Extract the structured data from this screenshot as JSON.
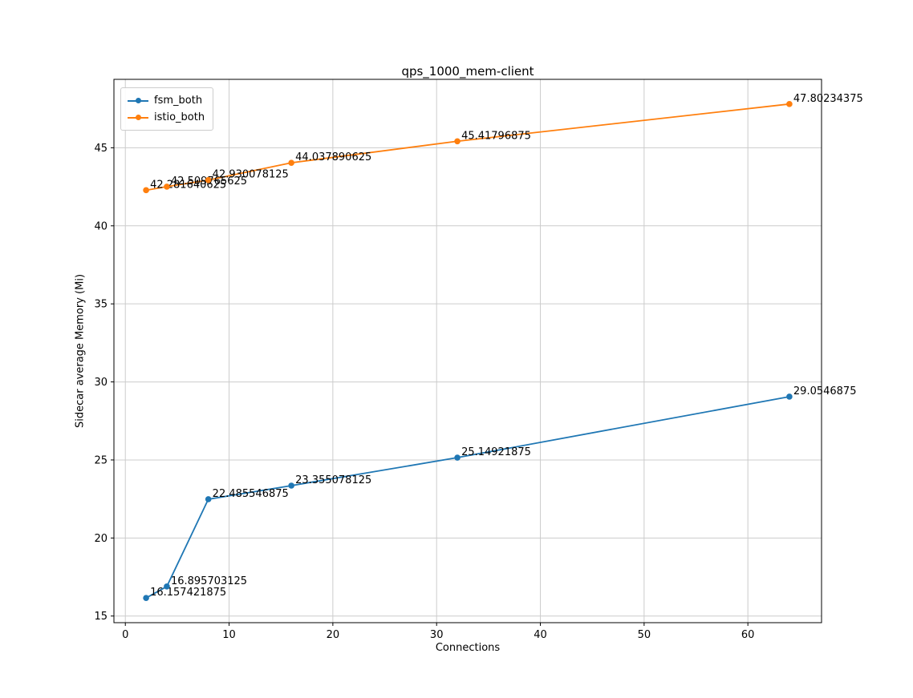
{
  "chart_data": {
    "type": "line",
    "title": "qps_1000_mem-client",
    "xlabel": "Connections",
    "ylabel": "Sidecar average Memory (Mi)",
    "x": [
      2,
      4,
      8,
      16,
      32,
      64
    ],
    "series": [
      {
        "name": "fsm_both",
        "color": "#1f77b4",
        "values": [
          16.157421875,
          16.895703125,
          22.485546875,
          23.355078125,
          25.14921875,
          29.0546875
        ],
        "labels": [
          "16.157421875",
          "16.895703125",
          "22.485546875",
          "23.355078125",
          "25.14921875",
          "29.0546875"
        ]
      },
      {
        "name": "istio_both",
        "color": "#ff7f0e",
        "values": [
          42.281640625,
          42.509765625,
          42.930078125,
          44.037890625,
          45.41796875,
          47.80234375
        ],
        "labels": [
          "42.281640625",
          "42.509765625",
          "42.930078125",
          "44.037890625",
          "45.41796875",
          "47.80234375"
        ]
      }
    ],
    "xticks": [
      0,
      10,
      20,
      30,
      40,
      50,
      60
    ],
    "yticks": [
      15,
      20,
      25,
      30,
      35,
      40,
      45
    ],
    "xlim": [
      -1.1,
      67.1
    ],
    "ylim": [
      14.575,
      49.385
    ],
    "grid": true,
    "grid_color": "#cccccc",
    "legend_position": "upper left",
    "text_color": "#000000",
    "spine_color": "#000000"
  }
}
